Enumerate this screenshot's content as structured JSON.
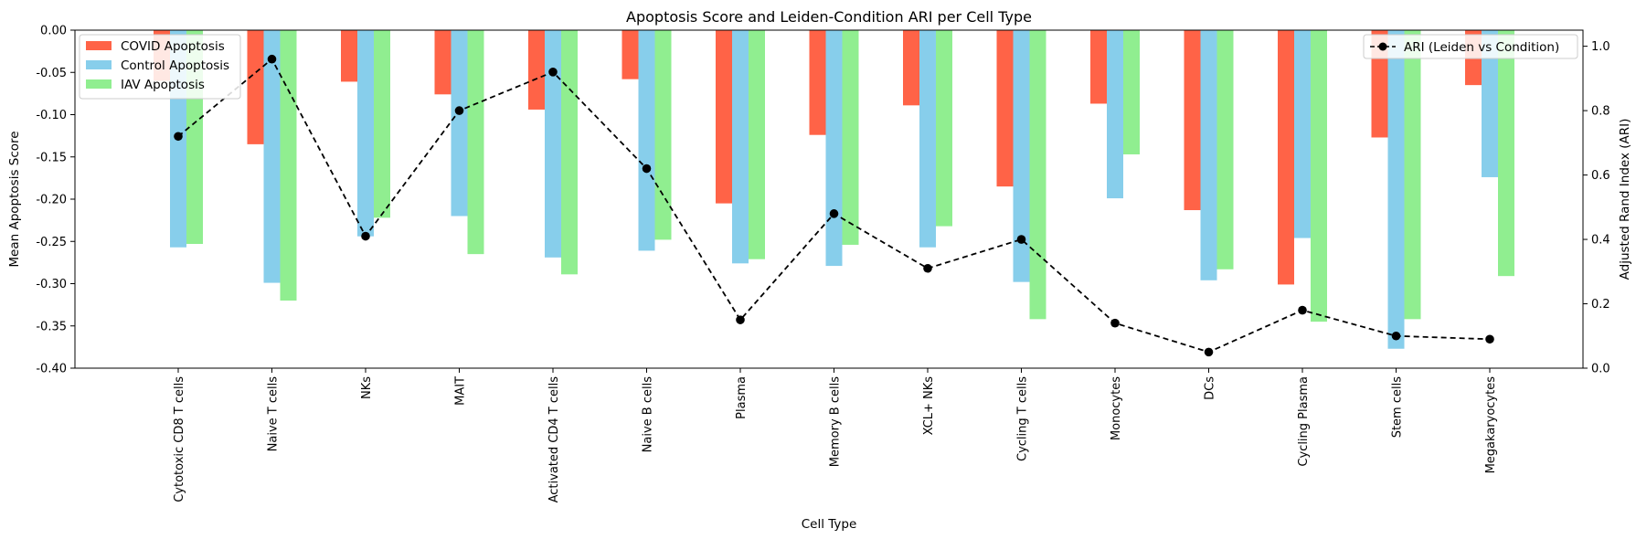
{
  "chart_data": {
    "type": "bar",
    "title": "Apoptosis Score and Leiden-Condition ARI per Cell Type",
    "xlabel": "Cell Type",
    "ylabel": "Mean Apoptosis Score",
    "y2label": "Adjusted Rand Index (ARI)",
    "ylim": [
      -0.4,
      0.0
    ],
    "y2lim": [
      0.0,
      1.05
    ],
    "yticks": [
      "-0.40",
      "-0.35",
      "-0.30",
      "-0.25",
      "-0.20",
      "-0.15",
      "-0.10",
      "-0.05",
      "0.00"
    ],
    "y2ticks": [
      "0.0",
      "0.2",
      "0.4",
      "0.6",
      "0.8",
      "1.0"
    ],
    "grid": false,
    "legend_bars_position": "top-left",
    "legend_line_position": "top-right",
    "categories": [
      "Cytotoxic CD8 T cells",
      "Naive T cells",
      "NKs",
      "MAIT",
      "Activated CD4 T cells",
      "Naive B cells",
      "Plasma",
      "Memory B cells",
      "XCL+ NKs",
      "Cycling T cells",
      "Monocytes",
      "DCs",
      "Cycling Plasma",
      "Stem cells",
      "Megakaryocytes"
    ],
    "series": [
      {
        "name": "COVID Apoptosis",
        "color": "#ff6347",
        "values": [
          -0.06,
          -0.135,
          -0.061,
          -0.076,
          -0.094,
          -0.058,
          -0.205,
          -0.124,
          -0.089,
          -0.185,
          -0.087,
          -0.213,
          -0.301,
          -0.127,
          -0.065
        ]
      },
      {
        "name": "Control Apoptosis",
        "color": "#87ceeb",
        "values": [
          -0.257,
          -0.299,
          -0.244,
          -0.22,
          -0.269,
          -0.261,
          -0.276,
          -0.279,
          -0.257,
          -0.298,
          -0.199,
          -0.296,
          -0.246,
          -0.377,
          -0.174
        ]
      },
      {
        "name": "IAV Apoptosis",
        "color": "#90ee90",
        "values": [
          -0.253,
          -0.32,
          -0.222,
          -0.265,
          -0.289,
          -0.248,
          -0.271,
          -0.254,
          -0.232,
          -0.342,
          -0.147,
          -0.283,
          -0.345,
          -0.342,
          -0.291
        ]
      }
    ],
    "line": {
      "name": "ARI (Leiden vs Condition)",
      "color": "#000000",
      "style": "dashed",
      "marker": "circle",
      "values": [
        0.72,
        0.96,
        0.41,
        0.8,
        0.92,
        0.62,
        0.15,
        0.48,
        0.31,
        0.4,
        0.14,
        0.05,
        0.18,
        0.1,
        0.09
      ]
    }
  }
}
